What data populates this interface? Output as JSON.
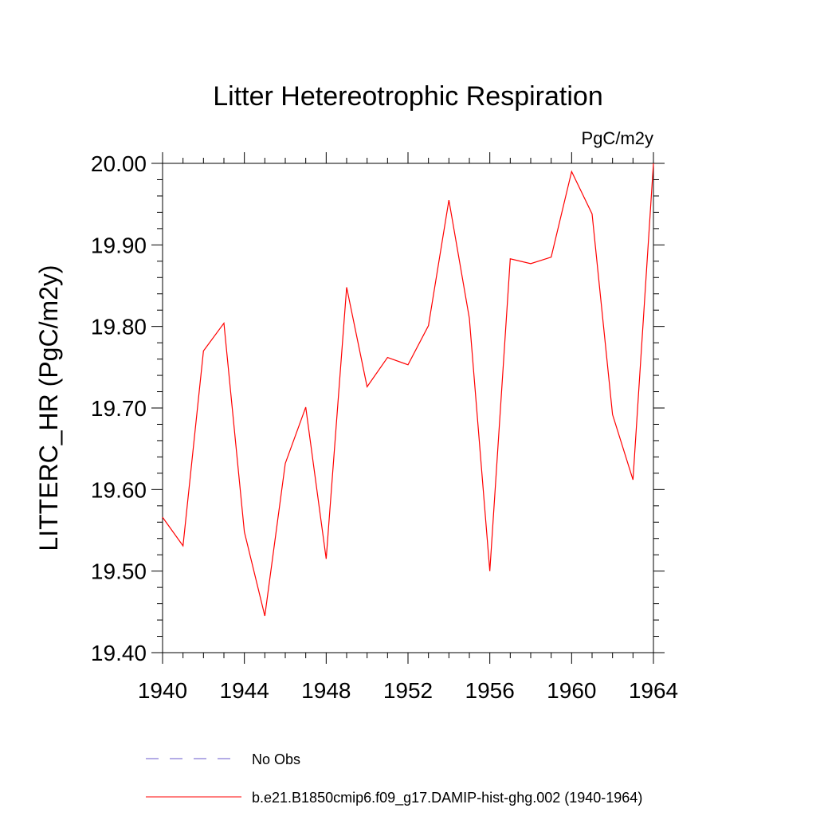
{
  "chart_data": {
    "type": "line",
    "title": "Litter Hetereotrophic Respiration",
    "units_label": "PgC/m2y",
    "ylabel": "LITTERC_HR  (PgC/m2y)",
    "xlabel": "",
    "xlim": [
      1940,
      1964
    ],
    "ylim": [
      19.4,
      20.0
    ],
    "x_ticks": [
      1940,
      1944,
      1948,
      1952,
      1956,
      1960,
      1964
    ],
    "x_tick_labels": [
      "1940",
      "1944",
      "1948",
      "1952",
      "1956",
      "1960",
      "1964"
    ],
    "y_ticks": [
      19.4,
      19.5,
      19.6,
      19.7,
      19.8,
      19.9,
      20.0
    ],
    "y_tick_labels": [
      "19.40",
      "19.50",
      "19.60",
      "19.70",
      "19.80",
      "19.90",
      "20.00"
    ],
    "grid": false,
    "legend_position": "bottom",
    "x": [
      1940,
      1941,
      1942,
      1943,
      1944,
      1945,
      1946,
      1947,
      1948,
      1949,
      1950,
      1951,
      1952,
      1953,
      1954,
      1955,
      1956,
      1957,
      1958,
      1959,
      1960,
      1961,
      1962,
      1963,
      1964
    ],
    "series": [
      {
        "name": "b.e21.B1850cmip6.f09_g17.DAMIP-hist-ghg.002 (1940-1964)",
        "color": "#ff0000",
        "dash": "solid",
        "values": [
          19.566,
          19.531,
          19.77,
          19.804,
          19.548,
          19.445,
          19.632,
          19.701,
          19.515,
          19.848,
          19.726,
          19.762,
          19.753,
          19.801,
          19.955,
          19.81,
          19.5,
          19.883,
          19.877,
          19.885,
          19.99,
          19.938,
          19.692,
          19.612,
          20.0
        ]
      }
    ],
    "legend": [
      {
        "label": "No Obs",
        "color": "#6a5acd",
        "dash": "dashed"
      },
      {
        "label": "b.e21.B1850cmip6.f09_g17.DAMIP-hist-ghg.002 (1940-1964)",
        "color": "#ff0000",
        "dash": "solid"
      }
    ]
  }
}
